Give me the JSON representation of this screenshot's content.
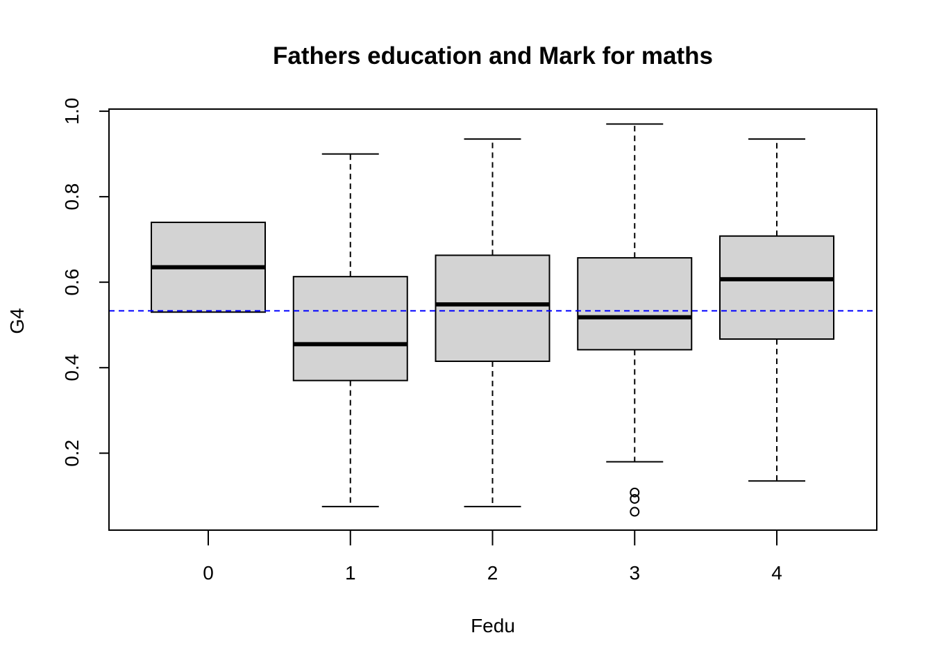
{
  "chart_data": {
    "type": "boxplot",
    "title": "Fathers education and Mark for maths",
    "xlabel": "Fedu",
    "ylabel": "G4",
    "categories": [
      "0",
      "1",
      "2",
      "3",
      "4"
    ],
    "y_ticks": [
      "0.2",
      "0.4",
      "0.6",
      "0.8",
      "1.0"
    ],
    "ylim": [
      0.02,
      1.005
    ],
    "boxes": [
      {
        "category": "0",
        "whisker_low": null,
        "q1": 0.53,
        "median": 0.635,
        "q3": 0.74,
        "whisker_high": null,
        "outliers": []
      },
      {
        "category": "1",
        "whisker_low": 0.075,
        "q1": 0.37,
        "median": 0.455,
        "q3": 0.613,
        "whisker_high": 0.9,
        "outliers": []
      },
      {
        "category": "2",
        "whisker_low": 0.075,
        "q1": 0.415,
        "median": 0.548,
        "q3": 0.663,
        "whisker_high": 0.935,
        "outliers": []
      },
      {
        "category": "3",
        "whisker_low": 0.18,
        "q1": 0.442,
        "median": 0.518,
        "q3": 0.657,
        "whisker_high": 0.97,
        "outliers": [
          0.063,
          0.093,
          0.108
        ]
      },
      {
        "category": "4",
        "whisker_low": 0.135,
        "q1": 0.467,
        "median": 0.607,
        "q3": 0.708,
        "whisker_high": 0.935,
        "outliers": []
      }
    ],
    "reference_line": {
      "y": 0.533,
      "color": "#0000ff",
      "style": "dashed"
    },
    "colors": {
      "box_fill": "#d3d3d3",
      "stroke": "#000000"
    },
    "grid": false,
    "legend": "none"
  }
}
